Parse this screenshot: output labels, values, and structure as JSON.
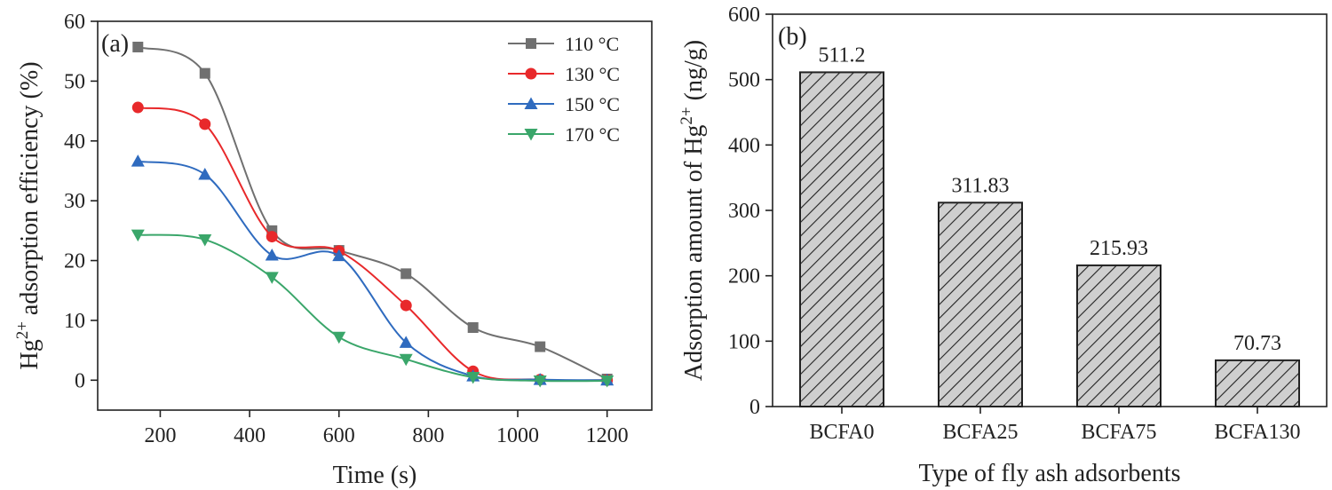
{
  "chart_data": [
    {
      "type": "line",
      "panel_label": "(a)",
      "xlabel": "Time (s)",
      "ylabel_prefix": "Hg",
      "ylabel_sup": "2+",
      "ylabel_suffix": " adsorption efficiency (%)",
      "xlim": [
        60,
        1300
      ],
      "ylim": [
        -5,
        60
      ],
      "xticks": [
        200,
        400,
        600,
        800,
        1000,
        1200
      ],
      "yticks": [
        0,
        10,
        20,
        30,
        40,
        50,
        60
      ],
      "x": [
        150,
        300,
        450,
        600,
        750,
        900,
        1050,
        1200
      ],
      "series": [
        {
          "name": "110 °C",
          "color": "#707070",
          "marker": "square",
          "values": [
            55.7,
            51.3,
            25.0,
            21.7,
            17.8,
            8.8,
            5.6,
            0.2
          ]
        },
        {
          "name": "130 °C",
          "color": "#e8292b",
          "marker": "circle",
          "values": [
            45.6,
            42.8,
            24.0,
            21.6,
            12.5,
            1.5,
            0.1,
            0.0
          ]
        },
        {
          "name": "150 °C",
          "color": "#2f6bbf",
          "marker": "triangle-up",
          "values": [
            36.6,
            34.4,
            20.9,
            20.8,
            6.3,
            0.7,
            0.1,
            0.0
          ]
        },
        {
          "name": "170 °C",
          "color": "#3aa66a",
          "marker": "triangle-down",
          "values": [
            24.3,
            23.5,
            17.2,
            7.2,
            3.5,
            0.5,
            -0.1,
            -0.1
          ]
        }
      ]
    },
    {
      "type": "bar",
      "panel_label": "(b)",
      "xlabel": "Type of fly ash adsorbents",
      "ylabel_prefix": "Adsorption amount of Hg",
      "ylabel_sup": "2+",
      "ylabel_suffix": " (ng/g)",
      "ylim": [
        0,
        600
      ],
      "yticks": [
        0,
        100,
        200,
        300,
        400,
        500,
        600
      ],
      "categories": [
        "BCFA0",
        "BCFA25",
        "BCFA75",
        "BCFA130"
      ],
      "values": [
        511.2,
        311.83,
        215.93,
        70.73
      ],
      "value_labels": [
        "511.2",
        "311.83",
        "215.93",
        "70.73"
      ]
    }
  ]
}
